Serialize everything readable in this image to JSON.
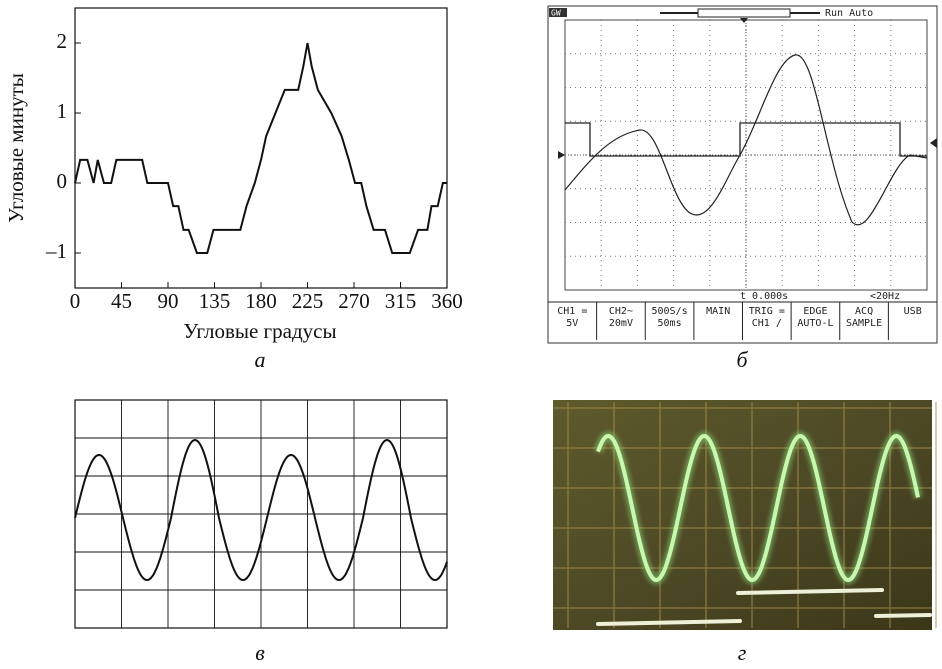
{
  "chart_data": {
    "type": "line",
    "ylabel": "Угловые минуты",
    "xlabel": "Угловые градусы",
    "x": [
      0,
      5,
      12,
      18,
      22,
      28,
      35,
      40,
      65,
      70,
      90,
      95,
      100,
      105,
      110,
      118,
      128,
      134,
      160,
      166,
      174,
      180,
      185,
      194,
      203,
      216,
      221,
      225,
      229,
      235,
      248,
      258,
      265,
      271,
      277,
      282,
      289,
      300,
      307,
      324,
      332,
      341,
      345,
      351,
      356,
      360
    ],
    "values": [
      0,
      0.33,
      0.33,
      0,
      0.33,
      0,
      0,
      0.33,
      0.33,
      0,
      0,
      -0.33,
      -0.33,
      -0.67,
      -0.67,
      -1,
      -1,
      -0.67,
      -0.67,
      -0.33,
      0,
      0.33,
      0.67,
      1,
      1.33,
      1.33,
      1.67,
      2,
      1.67,
      1.33,
      1,
      0.67,
      0.33,
      0,
      0,
      -0.33,
      -0.67,
      -0.67,
      -1,
      -1,
      -0.67,
      -0.67,
      -0.33,
      -0.33,
      0,
      0
    ],
    "color": "#111111",
    "xlim": [
      0,
      360
    ],
    "xticks": [
      0,
      45,
      90,
      135,
      180,
      225,
      270,
      315,
      360
    ],
    "ylim": [
      -1.5,
      2.5
    ],
    "yticks": [
      {
        "value": -1,
        "label": "–1"
      },
      0,
      1,
      2
    ]
  },
  "captions": [
    "а",
    "б",
    "в",
    "г"
  ],
  "scope": {
    "header": "GW",
    "mode": "Run Auto",
    "time": "t 0.000s",
    "freq": "<20Hz",
    "menu": [
      [
        "CH1 =",
        "5V"
      ],
      [
        "CH2~",
        "20mV"
      ],
      [
        "500S/s",
        "50ms"
      ],
      [
        "MAIN"
      ],
      [
        "TRIG =",
        "CH1 /"
      ],
      [
        "EDGE",
        "AUTO-L"
      ],
      [
        "ACQ",
        "SAMPLE"
      ],
      [
        "USB"
      ]
    ]
  }
}
